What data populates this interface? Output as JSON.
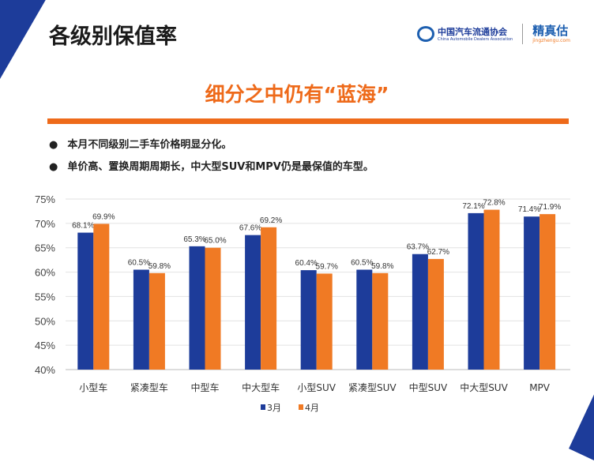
{
  "header": {
    "title": "各级别保值率",
    "logo_cn": "中国汽车流通协会",
    "logo_en": "China Automobile Dealers Association",
    "brand": "精真估",
    "brand_url": "jingzhengu.com"
  },
  "subtitle": "细分之中仍有“蓝海”",
  "bullets": [
    "本月不同级别二手车价格明显分化。",
    "单价高、置换周期周期长，中大型SUV和MPV仍是最保值的车型。"
  ],
  "colors": {
    "blue": "#1d3c9a",
    "orange": "#f07a24"
  },
  "chart_data": {
    "type": "bar",
    "categories": [
      "小型车",
      "紧凑型车",
      "中型车",
      "中大型车",
      "小型SUV",
      "紧凑型SUV",
      "中型SUV",
      "中大型SUV",
      "MPV"
    ],
    "series": [
      {
        "name": "3月",
        "values": [
          68.1,
          60.5,
          65.3,
          67.6,
          60.4,
          60.5,
          63.7,
          72.1,
          71.4
        ]
      },
      {
        "name": "4月",
        "values": [
          69.9,
          59.8,
          65.0,
          69.2,
          59.7,
          59.8,
          62.7,
          72.8,
          71.9
        ]
      }
    ],
    "ylim": [
      40,
      75
    ],
    "yticks": [
      "40%",
      "45%",
      "50%",
      "55%",
      "60%",
      "65%",
      "70%",
      "75%"
    ],
    "legend": "bottom"
  }
}
